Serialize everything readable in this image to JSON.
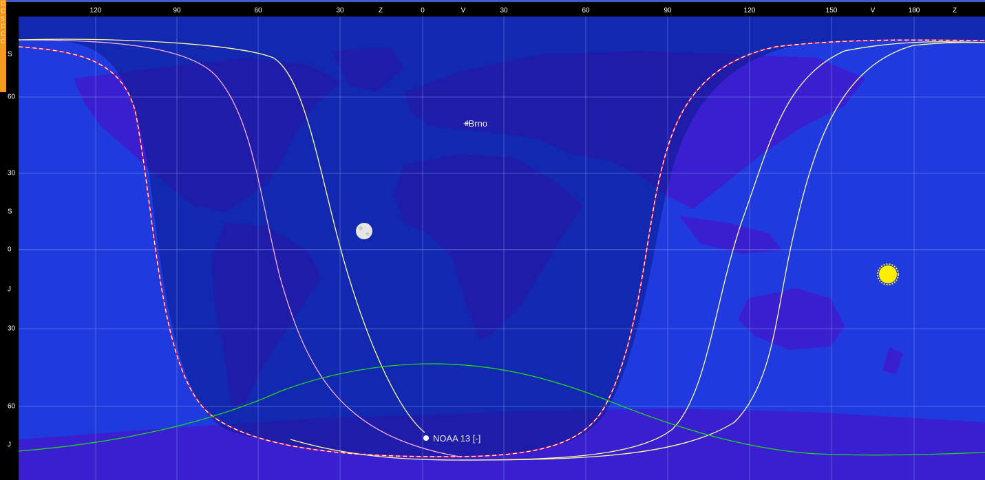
{
  "top_scale": {
    "ticks": [
      "120",
      "90",
      "60",
      "30",
      "Z",
      "0",
      "V",
      "30",
      "60",
      "90",
      "120",
      "150",
      "V",
      "180",
      "Z"
    ]
  },
  "left_scale": {
    "ticks": [
      "S",
      "60",
      "30",
      "S",
      "0",
      "J",
      "30",
      "60",
      "J"
    ]
  },
  "orange_edge_text": "C C S C C C",
  "map": {
    "location_label": "+Brno",
    "satellite_label": "NOAA 13 [-]",
    "colors": {
      "ocean_day": "#1f3be0",
      "ocean_night": "#0f2aa6",
      "land_day": "#3a1fd0",
      "land_night": "#2a1c9a",
      "grid": "#6f86e6",
      "terminator": "#ffffff",
      "terminator_inner": "#d2124a",
      "footprint": "#ffff9a",
      "footprint_pink": "#ffb0d8",
      "ground_track": "#1fd61f",
      "sun": "#ffee00",
      "moon": "#e6e6e6"
    },
    "icons": [
      "moon-icon",
      "sun-icon",
      "location-marker-icon",
      "satellite-dot-icon"
    ]
  }
}
